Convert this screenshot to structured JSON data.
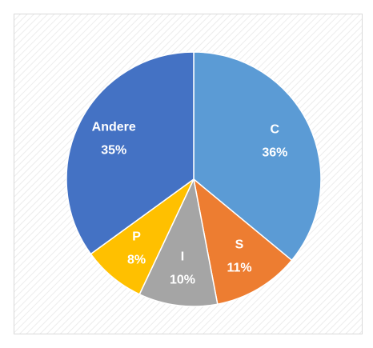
{
  "chart_data": {
    "type": "pie",
    "categories": [
      "C",
      "S",
      "I",
      "P",
      "Andere"
    ],
    "values": [
      36,
      11,
      10,
      8,
      35
    ],
    "value_labels": [
      "36%",
      "11%",
      "10%",
      "8%",
      "35%"
    ],
    "colors": [
      "#5b9bd5",
      "#ed7d31",
      "#a5a5a5",
      "#ffc000",
      "#4472c4"
    ]
  }
}
